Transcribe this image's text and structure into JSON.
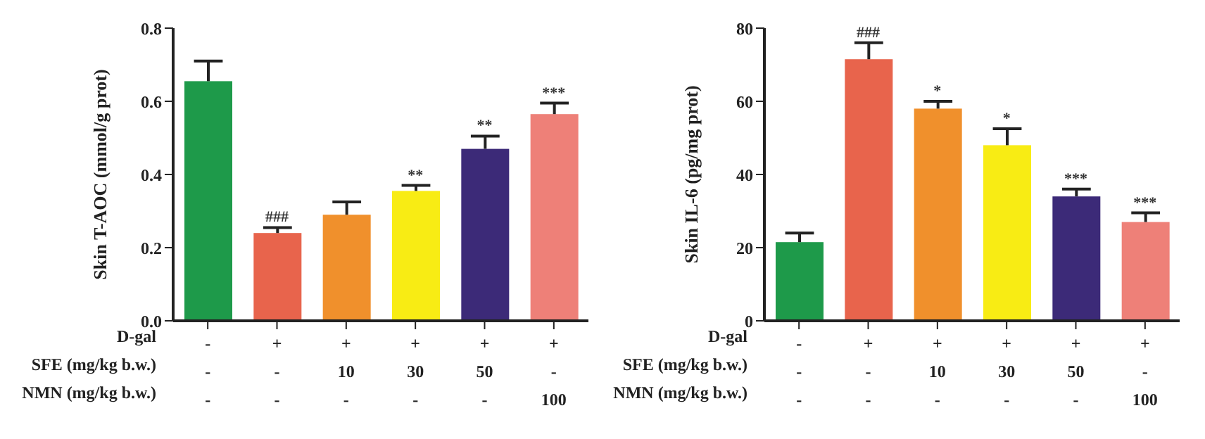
{
  "chart_data": [
    {
      "type": "bar",
      "ylabel": "Skin T-AOC (mmol/g prot)",
      "categories": [
        "-\n-\n-",
        "+\n-\n-",
        "+\n10\n-",
        "+\n30\n-",
        "+\n50\n-",
        "+\n-\n100"
      ],
      "values": [
        0.655,
        0.24,
        0.29,
        0.355,
        0.47,
        0.565
      ],
      "errors": [
        0.055,
        0.015,
        0.035,
        0.015,
        0.035,
        0.03
      ],
      "colors": [
        "#1e9a4a",
        "#e8644c",
        "#f0902c",
        "#f8ec14",
        "#3c2a78",
        "#ee8078"
      ],
      "ylim": [
        0,
        0.8
      ],
      "yticks": [
        {
          "value": 0,
          "label": "0.0"
        },
        0.2,
        0.4,
        0.6,
        0.8
      ],
      "grid": false,
      "legend": false,
      "annotations": [
        "D-gal",
        "SFE (mg/kg b.w.)",
        "NMN (mg/kg b.w.)",
        {
          "text": "###",
          "x": "+\n-\n-",
          "y": 0.24
        },
        {
          "text": "**",
          "x": "+\n30\n-",
          "y": 0.355
        },
        {
          "text": "**",
          "x": "+\n50\n-",
          "y": 0.47
        },
        {
          "text": "***",
          "x": "+\n-\n100",
          "y": 0.565
        }
      ]
    },
    {
      "type": "bar",
      "ylabel": "Skin IL-6 (pg/mg prot)",
      "categories": [
        "-\n-\n-",
        "+\n-\n-",
        "+\n10\n-",
        "+\n30\n-",
        "+\n50\n-",
        "+\n-\n100"
      ],
      "values": [
        21.5,
        71.5,
        58,
        48,
        34,
        27
      ],
      "errors": [
        2.5,
        4.5,
        2,
        4.5,
        2,
        2.5
      ],
      "colors": [
        "#1e9a4a",
        "#e8644c",
        "#f0902c",
        "#f8ec14",
        "#3c2a78",
        "#ee8078"
      ],
      "ylim": [
        0,
        80
      ],
      "yticks": [
        0,
        20,
        40,
        60,
        80
      ],
      "grid": false,
      "legend": false,
      "annotations": [
        "D-gal",
        "SFE (mg/kg b.w.)",
        "NMN (mg/kg b.w.)",
        {
          "text": "###",
          "x": "+\n-\n-",
          "y": 71.5
        },
        {
          "text": "*",
          "x": "+\n10\n-",
          "y": 58
        },
        {
          "text": "*",
          "x": "+\n30\n-",
          "y": 48
        },
        {
          "text": "***",
          "x": "+\n50\n-",
          "y": 34
        },
        {
          "text": "***",
          "x": "+\n-\n100",
          "y": 27
        }
      ]
    }
  ]
}
